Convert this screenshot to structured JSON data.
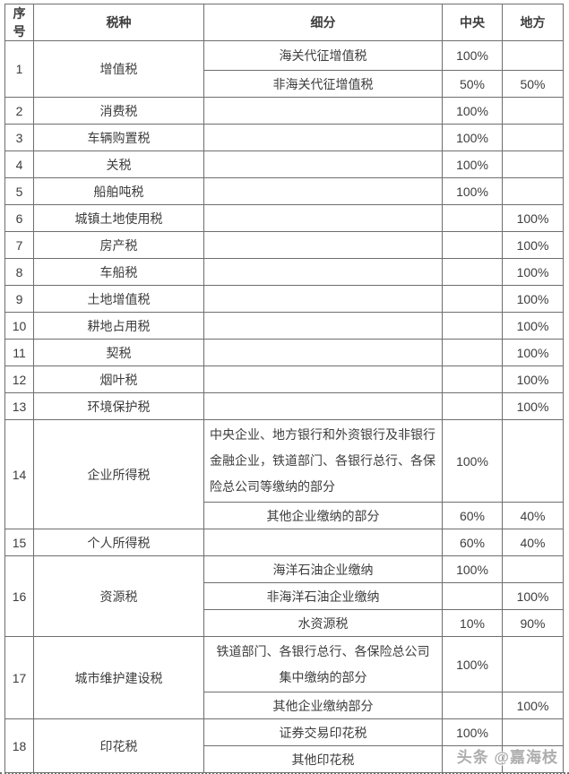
{
  "table": {
    "headers": {
      "no": "序号",
      "tax": "税种",
      "detail": "细分",
      "central": "中央",
      "local": "地方"
    },
    "rows": [
      {
        "no": "1",
        "tax": "增值税",
        "detail": "海关代征增值税",
        "central": "100%",
        "local": ""
      },
      {
        "detail": "非海关代征增值税",
        "central": "50%",
        "local": "50%"
      },
      {
        "no": "2",
        "tax": "消费税",
        "detail": "",
        "central": "100%",
        "local": ""
      },
      {
        "no": "3",
        "tax": "车辆购置税",
        "detail": "",
        "central": "100%",
        "local": ""
      },
      {
        "no": "4",
        "tax": "关税",
        "detail": "",
        "central": "100%",
        "local": ""
      },
      {
        "no": "5",
        "tax": "船舶吨税",
        "detail": "",
        "central": "100%",
        "local": ""
      },
      {
        "no": "6",
        "tax": "城镇土地使用税",
        "detail": "",
        "central": "",
        "local": "100%"
      },
      {
        "no": "7",
        "tax": "房产税",
        "detail": "",
        "central": "",
        "local": "100%"
      },
      {
        "no": "8",
        "tax": "车船税",
        "detail": "",
        "central": "",
        "local": "100%"
      },
      {
        "no": "9",
        "tax": "土地增值税",
        "detail": "",
        "central": "",
        "local": "100%"
      },
      {
        "no": "10",
        "tax": "耕地占用税",
        "detail": "",
        "central": "",
        "local": "100%"
      },
      {
        "no": "11",
        "tax": "契税",
        "detail": "",
        "central": "",
        "local": "100%"
      },
      {
        "no": "12",
        "tax": "烟叶税",
        "detail": "",
        "central": "",
        "local": "100%"
      },
      {
        "no": "13",
        "tax": "环境保护税",
        "detail": "",
        "central": "",
        "local": "100%"
      },
      {
        "no": "14",
        "tax": "企业所得税",
        "detail": "中央企业、地方银行和外资银行及非银行金融企业，铁道部门、各银行总行、各保险总公司等缴纳的部分",
        "central": "100%",
        "local": ""
      },
      {
        "detail": "其他企业缴纳的部分",
        "central": "60%",
        "local": "40%"
      },
      {
        "no": "15",
        "tax": "个人所得税",
        "detail": "",
        "central": "60%",
        "local": "40%"
      },
      {
        "no": "16",
        "tax": "资源税",
        "detail": "海洋石油企业缴纳",
        "central": "100%",
        "local": ""
      },
      {
        "detail": "非海洋石油企业缴纳",
        "central": "",
        "local": "100%"
      },
      {
        "detail": "水资源税",
        "central": "10%",
        "local": "90%"
      },
      {
        "no": "17",
        "tax": "城市维护建设税",
        "detail": "铁道部门、各银行总行、各保险总公司集中缴纳的部分",
        "central": "100%",
        "local": ""
      },
      {
        "detail": "其他企业缴纳部分",
        "central": "",
        "local": "100%"
      },
      {
        "no": "18",
        "tax": "印花税",
        "detail": "证券交易印花税",
        "central": "100%",
        "local": ""
      },
      {
        "detail": "其他印花税",
        "central": "",
        "local": ""
      }
    ]
  },
  "watermark": {
    "text": "头条 @嘉海枝"
  },
  "colors": {
    "border": "#6e6e6e",
    "text": "#3d3d3d",
    "watermark": "#adadad",
    "background": "#ffffff"
  }
}
